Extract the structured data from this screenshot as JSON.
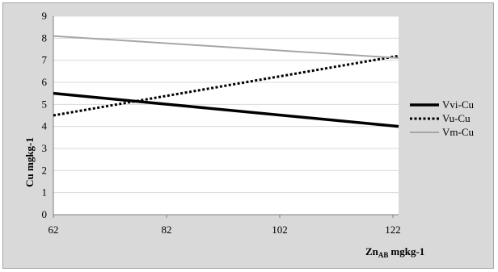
{
  "chart_data": {
    "type": "line",
    "x": [
      62,
      123
    ],
    "xticks": [
      "62",
      "82",
      "102",
      "122"
    ],
    "yticks": [
      "0",
      "1",
      "2",
      "3",
      "4",
      "5",
      "6",
      "7",
      "8",
      "9"
    ],
    "xlim": [
      62,
      123
    ],
    "ylim": [
      0,
      9
    ],
    "xlabel_main": "Zn",
    "xlabel_sub": "AB",
    "xlabel_unit": "mgkg-1",
    "ylabel": "Cu mgkg-1",
    "grid": "horizontal",
    "legend_position": "right",
    "series": [
      {
        "name": "Vvi-Cu",
        "values": [
          5.5,
          4.0
        ],
        "color": "#000000",
        "style": "solid-thick"
      },
      {
        "name": "Vu-Cu",
        "values": [
          4.5,
          7.2
        ],
        "color": "#000000",
        "style": "dotted"
      },
      {
        "name": "Vm-Cu",
        "values": [
          8.1,
          7.1
        ],
        "color": "#a6a6a6",
        "style": "solid"
      }
    ]
  }
}
